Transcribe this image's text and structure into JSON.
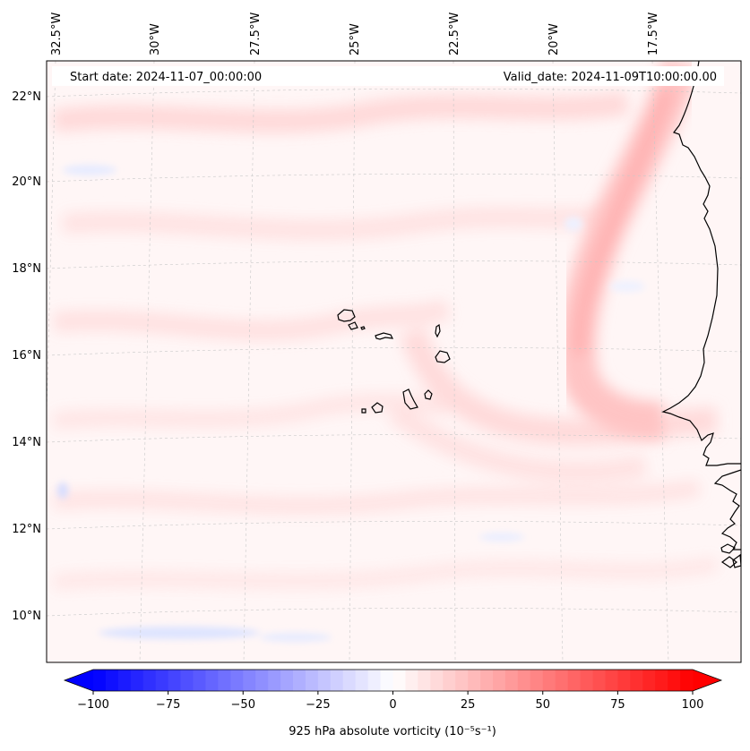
{
  "map": {
    "start_date_label": "Start date: 2024-11-07_00:00:00",
    "valid_date_label": "Valid_date: 2024-11-09T10:00:00.00",
    "longitude_labels": [
      "32.5°W",
      "30°W",
      "27.5°W",
      "25°W",
      "22.5°W",
      "20°W",
      "17.5°W"
    ],
    "latitude_labels": [
      "22°N",
      "20°N",
      "18°N",
      "16°N",
      "14°N",
      "12°N",
      "10°N"
    ],
    "field": "925 hPa absolute vorticity",
    "colors": {
      "negative": "#0000ff",
      "zero": "#ffffff",
      "positive": "#ff0000",
      "coastline": "#000000",
      "gridline": "#c8c8c8"
    }
  },
  "colorbar": {
    "label": "925 hPa absolute vorticity (10⁻⁵s⁻¹)",
    "min": -100,
    "max": 100,
    "tick_labels": [
      "−100",
      "−75",
      "−50",
      "−25",
      "0",
      "25",
      "50",
      "75",
      "100"
    ],
    "n_levels": 48
  }
}
